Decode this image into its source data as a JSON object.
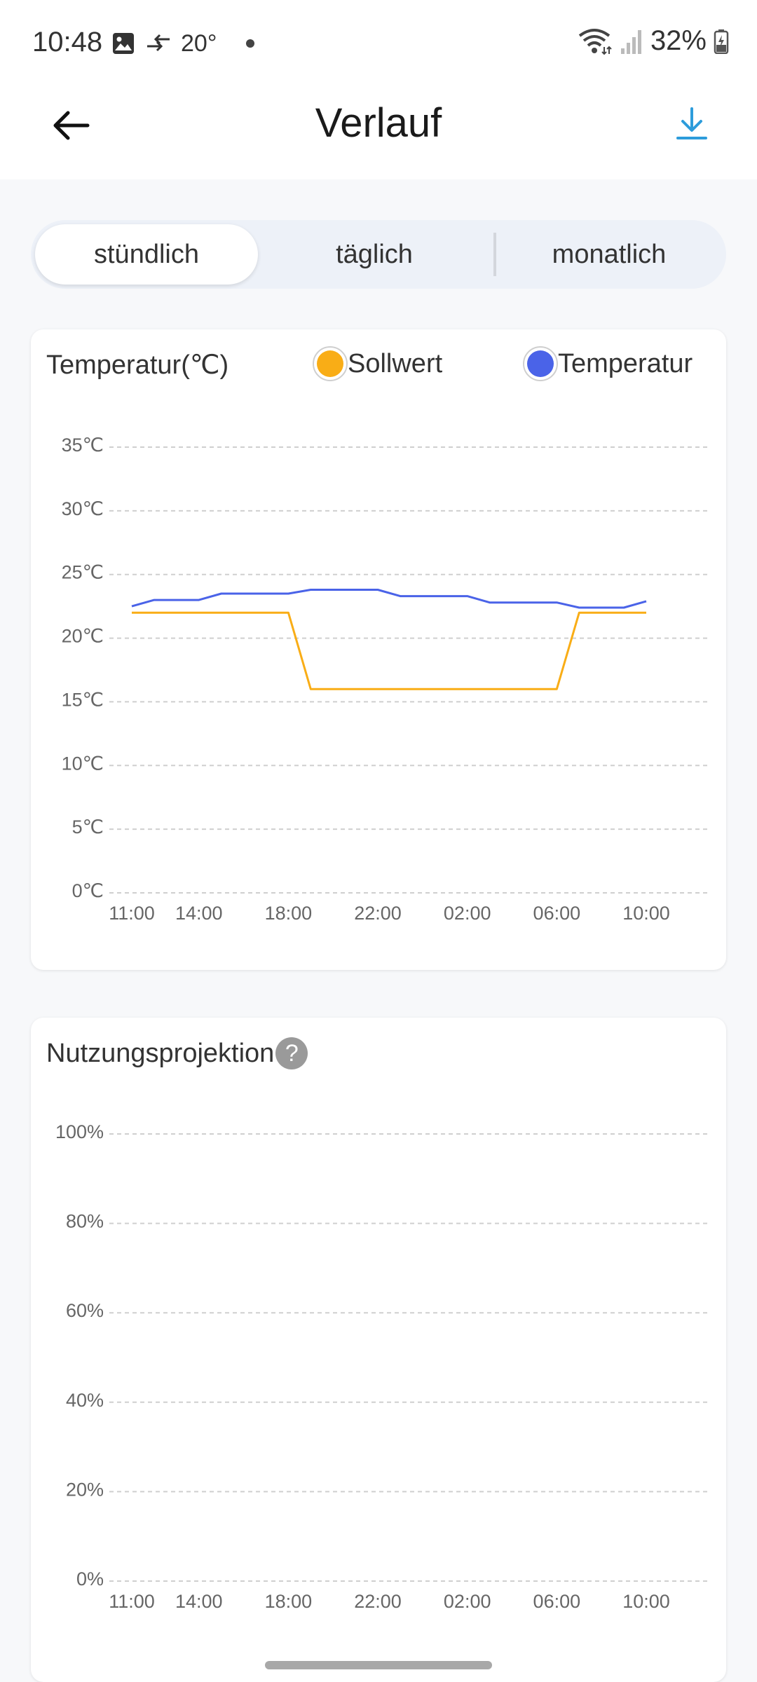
{
  "status_bar": {
    "time": "10:48",
    "weather_temp": "20°",
    "battery": "32%",
    "icons": [
      "gallery-icon",
      "data-transfer-icon",
      "wifi-icon",
      "signal-icon",
      "battery-icon"
    ]
  },
  "header": {
    "title": "Verlauf",
    "back_icon": "arrow-left-icon",
    "download_icon": "download-icon",
    "accent_color": "#2d9cdb"
  },
  "tabs": [
    {
      "label": "stündlich",
      "active": true
    },
    {
      "label": "täglich",
      "active": false
    },
    {
      "label": "monatlich",
      "active": false
    }
  ],
  "temperature_card": {
    "title": "Temperatur(℃)",
    "legend": [
      {
        "label": "Sollwert",
        "color": "#f9ad16"
      },
      {
        "label": "Temperatur",
        "color": "#4a63e8"
      }
    ]
  },
  "usage_card": {
    "title": "Nutzungsprojektion"
  },
  "chart_data": [
    {
      "type": "line",
      "title": "Temperatur(℃)",
      "x_ticks": [
        "11:00",
        "14:00",
        "18:00",
        "22:00",
        "02:00",
        "06:00",
        "10:00"
      ],
      "y_ticks": [
        "0℃",
        "5℃",
        "10℃",
        "15℃",
        "20℃",
        "25℃",
        "30℃",
        "35℃"
      ],
      "ylim": [
        0,
        35
      ],
      "grid": true,
      "legend_position": "top",
      "x_hours": [
        0,
        1,
        2,
        3,
        4,
        5,
        6,
        7,
        8,
        9,
        10,
        11,
        12,
        13,
        14,
        15,
        16,
        17,
        18,
        19,
        20,
        21,
        22,
        23
      ],
      "series": [
        {
          "name": "Sollwert",
          "color": "#f9ad16",
          "values": [
            22,
            22,
            22,
            22,
            22,
            22,
            22,
            22,
            16,
            16,
            16,
            16,
            16,
            16,
            16,
            16,
            16,
            16,
            16,
            16,
            22,
            22,
            22,
            22
          ]
        },
        {
          "name": "Temperatur",
          "color": "#4a63e8",
          "values": [
            22.5,
            23,
            23,
            23,
            23.5,
            23.5,
            23.5,
            23.5,
            23.8,
            23.8,
            23.8,
            23.8,
            23.3,
            23.3,
            23.3,
            23.3,
            22.8,
            22.8,
            22.8,
            22.8,
            22.4,
            22.4,
            22.4,
            22.9
          ]
        }
      ]
    },
    {
      "type": "bar",
      "title": "Nutzungsprojektion",
      "x_ticks": [
        "11:00",
        "14:00",
        "18:00",
        "22:00",
        "02:00",
        "06:00",
        "10:00"
      ],
      "y_ticks": [
        "0%",
        "20%",
        "40%",
        "60%",
        "80%",
        "100%"
      ],
      "ylim": [
        0,
        100
      ],
      "grid": true,
      "values": []
    }
  ]
}
